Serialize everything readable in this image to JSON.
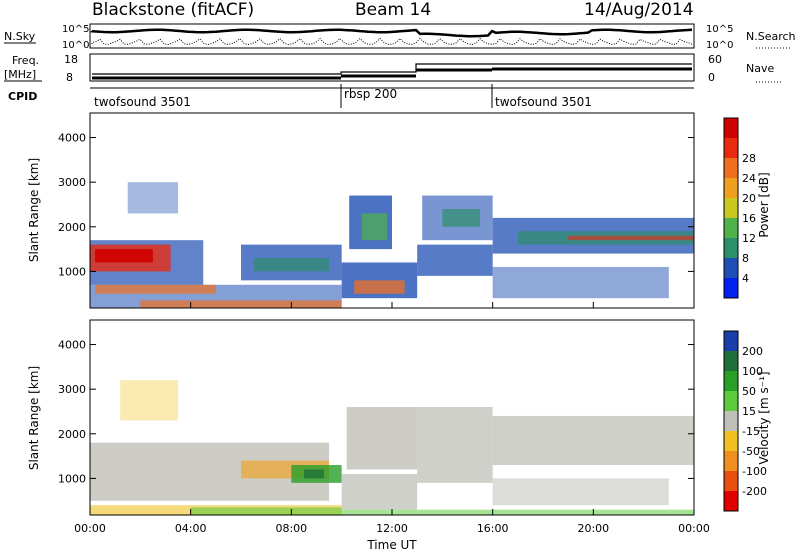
{
  "header": {
    "station": "Blackstone (fitACF)",
    "beam": "Beam 14",
    "date": "14/Aug/2014"
  },
  "info_panels": {
    "nsky_label": "N.Sky",
    "nsearch_label": "N.Search",
    "freq_label_1": "Freq.",
    "freq_label_2": "[MHz]",
    "nave_label": "Nave",
    "cpid_label": "CPID",
    "left_ticks_top": [
      "10^5",
      "10^0"
    ],
    "right_ticks_top": [
      "10^5",
      "10^0"
    ],
    "freq_ticks": [
      "18",
      "8"
    ],
    "nave_ticks": [
      "60",
      "0"
    ]
  },
  "cpid_segments": [
    {
      "label": "twofsound 3501",
      "start_hour": 0,
      "end_hour": 10
    },
    {
      "label": "rbsp 200",
      "start_hour": 10,
      "end_hour": 16
    },
    {
      "label": "twofsound 3501",
      "start_hour": 16,
      "end_hour": 24
    }
  ],
  "chart_data": [
    {
      "type": "heatmap",
      "title": "",
      "xlabel": "",
      "ylabel": "Slant Range [km]",
      "x_ticks": [
        "00:00",
        "04:00",
        "08:00",
        "12:00",
        "16:00",
        "20:00",
        "00:00"
      ],
      "x_range_hours": [
        0,
        24
      ],
      "y_ticks": [
        1000,
        2000,
        3000,
        4000
      ],
      "ylim": [
        180,
        4550
      ],
      "colorbar": {
        "label": "Power [dB]",
        "ticks": [
          4,
          8,
          12,
          16,
          20,
          24,
          28
        ],
        "colors": [
          "#0022ee",
          "#1f4fb4",
          "#2e8f6b",
          "#4fb24a",
          "#c8c820",
          "#f0a020",
          "#f07020",
          "#e82a10",
          "#d00000"
        ]
      }
    },
    {
      "type": "heatmap",
      "title": "",
      "xlabel": "Time UT",
      "ylabel": "Slant Range [km]",
      "x_ticks": [
        "00:00",
        "04:00",
        "08:00",
        "12:00",
        "16:00",
        "20:00",
        "00:00"
      ],
      "x_range_hours": [
        0,
        24
      ],
      "y_ticks": [
        1000,
        2000,
        3000,
        4000
      ],
      "ylim": [
        180,
        4550
      ],
      "colorbar": {
        "label": "Velocity [m s⁻¹]",
        "ticks": [
          200,
          100,
          50,
          15,
          -15,
          -50,
          -100,
          -200
        ],
        "colors": [
          "#1a3faa",
          "#1e6f3a",
          "#28a028",
          "#5ccc3c",
          "#c0c0b8",
          "#f0c020",
          "#f09020",
          "#e85010",
          "#e00000"
        ]
      }
    }
  ]
}
